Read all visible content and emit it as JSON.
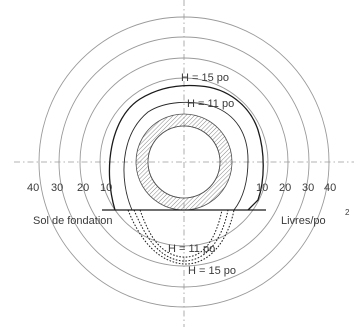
{
  "diagram": {
    "ring_scale_labels": [
      "10",
      "20",
      "30",
      "40"
    ],
    "curve_labels": {
      "upper_outer": "H = 15 po",
      "upper_inner": "H = 11 po",
      "lower_inner": "H = 11 po",
      "lower_outer": "H = 15 po"
    },
    "soil_label": "Sol de fondation",
    "unit_label": "Livres/po",
    "unit_exponent": "2"
  },
  "colors": {
    "rings": "#9a9a9a",
    "curves": "#1a1a1a",
    "pipe_hatch": "#888888"
  }
}
